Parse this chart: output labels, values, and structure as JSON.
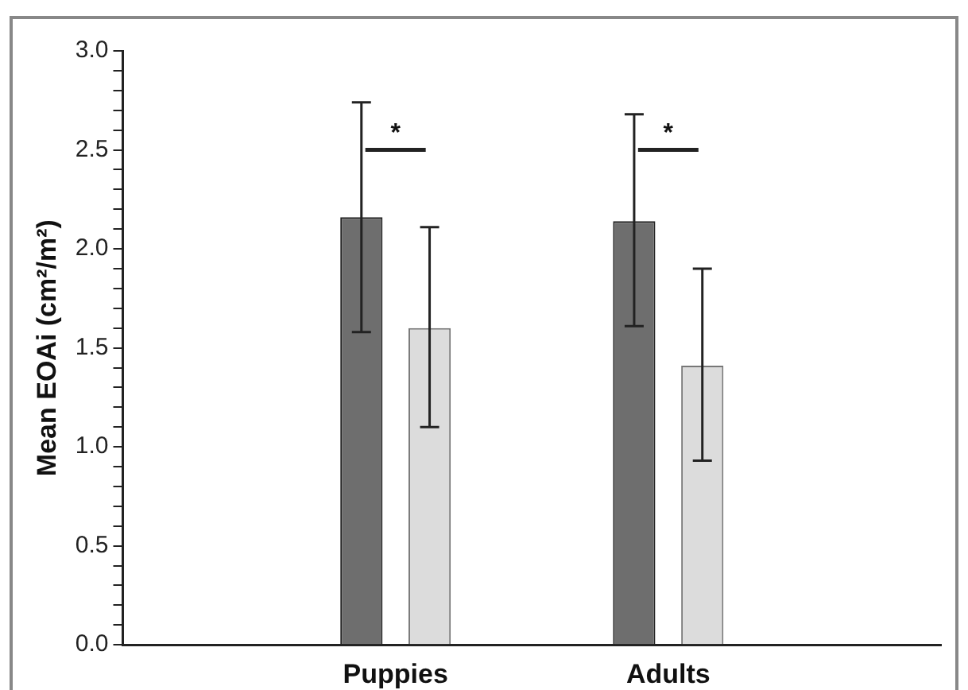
{
  "chart_data": {
    "type": "bar",
    "ylabel": "Mean EOAi (cm²/m²)",
    "categories": [
      null,
      "Puppies",
      "Adults",
      null
    ],
    "series": [
      {
        "color": "#6e6e6e",
        "values": [
          null,
          2.16,
          2.14,
          null
        ],
        "errors": [
          null,
          [
            1.58,
            2.74
          ],
          [
            1.61,
            2.68
          ],
          null
        ]
      },
      {
        "color": "#dcdcdc",
        "values": [
          null,
          1.6,
          1.41,
          null
        ],
        "errors": [
          null,
          [
            1.1,
            2.11
          ],
          [
            0.93,
            1.9
          ],
          null
        ]
      }
    ],
    "ylim": [
      0,
      3
    ],
    "yticks": [
      {
        "value": 0,
        "label": "0.0"
      },
      {
        "value": 0.1,
        "label": null
      },
      {
        "value": 0.2,
        "label": null
      },
      {
        "value": 0.3,
        "label": null
      },
      {
        "value": 0.4,
        "label": null
      },
      {
        "value": 0.5,
        "label": "0.5"
      },
      {
        "value": 0.6,
        "label": null
      },
      {
        "value": 0.7,
        "label": null
      },
      {
        "value": 0.8,
        "label": null
      },
      {
        "value": 0.9,
        "label": null
      },
      {
        "value": 1,
        "label": "1.0"
      },
      {
        "value": 1.1,
        "label": null
      },
      {
        "value": 1.2,
        "label": null
      },
      {
        "value": 1.3,
        "label": null
      },
      {
        "value": 1.4,
        "label": null
      },
      {
        "value": 1.5,
        "label": "1.5"
      },
      {
        "value": 1.6,
        "label": null
      },
      {
        "value": 1.7,
        "label": null
      },
      {
        "value": 1.8,
        "label": null
      },
      {
        "value": 1.9,
        "label": null
      },
      {
        "value": 2,
        "label": "2.0"
      },
      {
        "value": 2.1,
        "label": null
      },
      {
        "value": 2.2,
        "label": null
      },
      {
        "value": 2.3,
        "label": null
      },
      {
        "value": 2.4,
        "label": null
      },
      {
        "value": 2.5,
        "label": "2.5"
      },
      {
        "value": 2.6,
        "label": null
      },
      {
        "value": 2.7,
        "label": null
      },
      {
        "value": 2.8,
        "label": null
      },
      {
        "value": 2.9,
        "label": null
      },
      {
        "value": 3,
        "label": "3.0"
      }
    ],
    "annotations": [
      "*",
      "*"
    ],
    "grid": false,
    "legend": false
  }
}
